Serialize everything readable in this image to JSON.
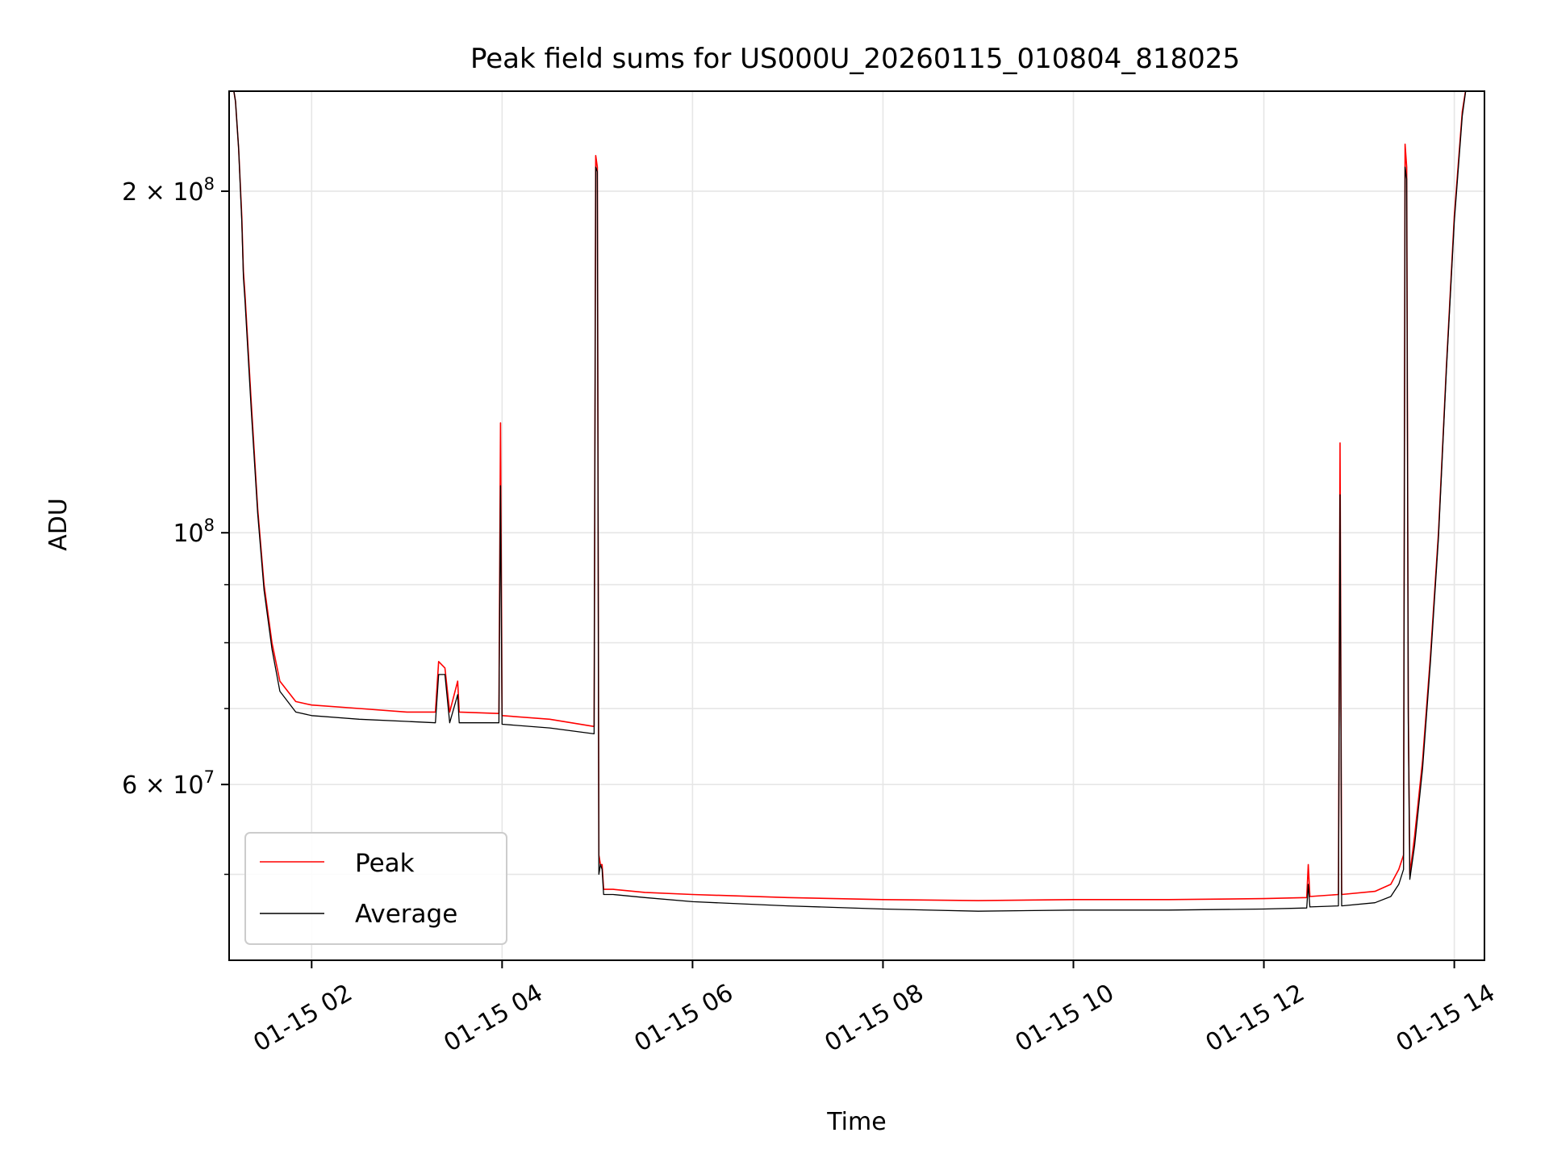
{
  "chart_data": {
    "type": "line",
    "title": "Peak field sums for US000U_20260115_010804_818025",
    "xlabel": "Time",
    "ylabel": "ADU",
    "yscale": "log",
    "grid": true,
    "legend_position": "lower-left",
    "xlim": [
      "2026-01-15 01:08",
      "2026-01-15 14:19"
    ],
    "ylim": [
      42000000,
      245000000
    ],
    "x_ticks": [
      {
        "value": "2026-01-15 02:00",
        "label": "01-15 02"
      },
      {
        "value": "2026-01-15 04:00",
        "label": "01-15 04"
      },
      {
        "value": "2026-01-15 06:00",
        "label": "01-15 06"
      },
      {
        "value": "2026-01-15 08:00",
        "label": "01-15 08"
      },
      {
        "value": "2026-01-15 10:00",
        "label": "01-15 10"
      },
      {
        "value": "2026-01-15 12:00",
        "label": "01-15 12"
      },
      {
        "value": "2026-01-15 14:00",
        "label": "01-15 14"
      }
    ],
    "y_ticks_major": [
      {
        "value": 100000000,
        "label": "10",
        "exp": "8"
      },
      {
        "value": 200000000,
        "label": "2 × 10",
        "exp": "8"
      },
      {
        "value": 60000000,
        "label": "6 × 10",
        "exp": "7"
      }
    ],
    "y_ticks_minor": [
      50000000,
      70000000,
      80000000,
      90000000
    ],
    "series": [
      {
        "name": "Peak",
        "color": "#ff0000",
        "points": [
          [
            "2026-01-15 01:10",
            250000000
          ],
          [
            "2026-01-15 01:12",
            240000000
          ],
          [
            "2026-01-15 01:14",
            218000000
          ],
          [
            "2026-01-15 01:16",
            190000000
          ],
          [
            "2026-01-15 01:17",
            170000000
          ],
          [
            "2026-01-15 01:18",
            162000000
          ],
          [
            "2026-01-15 01:22",
            130000000
          ],
          [
            "2026-01-15 01:26",
            105000000
          ],
          [
            "2026-01-15 01:30",
            90000000
          ],
          [
            "2026-01-15 01:35",
            80000000
          ],
          [
            "2026-01-15 01:40",
            74000000
          ],
          [
            "2026-01-15 01:50",
            71000000
          ],
          [
            "2026-01-15 02:00",
            70500000
          ],
          [
            "2026-01-15 02:30",
            70000000
          ],
          [
            "2026-01-15 03:00",
            69500000
          ],
          [
            "2026-01-15 03:18",
            69500000
          ],
          [
            "2026-01-15 03:20",
            77000000
          ],
          [
            "2026-01-15 03:24",
            76000000
          ],
          [
            "2026-01-15 03:27",
            69500000
          ],
          [
            "2026-01-15 03:32",
            74000000
          ],
          [
            "2026-01-15 03:33",
            69500000
          ],
          [
            "2026-01-15 03:58",
            69300000
          ],
          [
            "2026-01-15 03:59",
            125000000
          ],
          [
            "2026-01-15 04:00",
            69000000
          ],
          [
            "2026-01-15 04:30",
            68500000
          ],
          [
            "2026-01-15 04:58",
            67500000
          ],
          [
            "2026-01-15 04:59",
            215000000
          ],
          [
            "2026-01-15 05:00",
            210000000
          ],
          [
            "2026-01-15 05:01",
            52000000
          ],
          [
            "2026-01-15 05:02",
            51000000
          ],
          [
            "2026-01-15 05:03",
            51000000
          ],
          [
            "2026-01-15 05:04",
            48500000
          ],
          [
            "2026-01-15 05:10",
            48500000
          ],
          [
            "2026-01-15 05:30",
            48200000
          ],
          [
            "2026-01-15 06:00",
            48000000
          ],
          [
            "2026-01-15 07:00",
            47700000
          ],
          [
            "2026-01-15 08:00",
            47500000
          ],
          [
            "2026-01-15 09:00",
            47400000
          ],
          [
            "2026-01-15 10:00",
            47500000
          ],
          [
            "2026-01-15 11:00",
            47500000
          ],
          [
            "2026-01-15 12:00",
            47600000
          ],
          [
            "2026-01-15 12:27",
            47700000
          ],
          [
            "2026-01-15 12:28",
            51000000
          ],
          [
            "2026-01-15 12:29",
            47800000
          ],
          [
            "2026-01-15 12:47",
            48000000
          ],
          [
            "2026-01-15 12:48",
            120000000
          ],
          [
            "2026-01-15 12:49",
            48000000
          ],
          [
            "2026-01-15 13:10",
            48300000
          ],
          [
            "2026-01-15 13:20",
            49000000
          ],
          [
            "2026-01-15 13:25",
            50500000
          ],
          [
            "2026-01-15 13:28",
            52000000
          ],
          [
            "2026-01-15 13:29",
            220000000
          ],
          [
            "2026-01-15 13:30",
            210000000
          ],
          [
            "2026-01-15 13:31",
            70000000
          ],
          [
            "2026-01-15 13:32",
            50000000
          ],
          [
            "2026-01-15 13:35",
            54000000
          ],
          [
            "2026-01-15 13:40",
            63000000
          ],
          [
            "2026-01-15 13:45",
            78000000
          ],
          [
            "2026-01-15 13:50",
            100000000
          ],
          [
            "2026-01-15 13:55",
            140000000
          ],
          [
            "2026-01-15 14:00",
            190000000
          ],
          [
            "2026-01-15 14:05",
            235000000
          ],
          [
            "2026-01-15 14:08",
            250000000
          ]
        ]
      },
      {
        "name": "Average",
        "color": "#000000",
        "points": [
          [
            "2026-01-15 01:10",
            250000000
          ],
          [
            "2026-01-15 01:12",
            240000000
          ],
          [
            "2026-01-15 01:14",
            218000000
          ],
          [
            "2026-01-15 01:16",
            188000000
          ],
          [
            "2026-01-15 01:17",
            168000000
          ],
          [
            "2026-01-15 01:18",
            160000000
          ],
          [
            "2026-01-15 01:22",
            128000000
          ],
          [
            "2026-01-15 01:26",
            104000000
          ],
          [
            "2026-01-15 01:30",
            89000000
          ],
          [
            "2026-01-15 01:35",
            79000000
          ],
          [
            "2026-01-15 01:40",
            72500000
          ],
          [
            "2026-01-15 01:50",
            69500000
          ],
          [
            "2026-01-15 02:00",
            69000000
          ],
          [
            "2026-01-15 02:30",
            68500000
          ],
          [
            "2026-01-15 03:00",
            68200000
          ],
          [
            "2026-01-15 03:18",
            68000000
          ],
          [
            "2026-01-15 03:20",
            75000000
          ],
          [
            "2026-01-15 03:24",
            75000000
          ],
          [
            "2026-01-15 03:27",
            68000000
          ],
          [
            "2026-01-15 03:32",
            72000000
          ],
          [
            "2026-01-15 03:33",
            68000000
          ],
          [
            "2026-01-15 03:58",
            68000000
          ],
          [
            "2026-01-15 03:59",
            110000000
          ],
          [
            "2026-01-15 04:00",
            67800000
          ],
          [
            "2026-01-15 04:30",
            67300000
          ],
          [
            "2026-01-15 04:58",
            66500000
          ],
          [
            "2026-01-15 04:59",
            210000000
          ],
          [
            "2026-01-15 05:00",
            208000000
          ],
          [
            "2026-01-15 05:01",
            50000000
          ],
          [
            "2026-01-15 05:02",
            51000000
          ],
          [
            "2026-01-15 05:03",
            50500000
          ],
          [
            "2026-01-15 05:04",
            48000000
          ],
          [
            "2026-01-15 05:10",
            48000000
          ],
          [
            "2026-01-15 05:30",
            47700000
          ],
          [
            "2026-01-15 06:00",
            47300000
          ],
          [
            "2026-01-15 07:00",
            46900000
          ],
          [
            "2026-01-15 08:00",
            46600000
          ],
          [
            "2026-01-15 09:00",
            46400000
          ],
          [
            "2026-01-15 10:00",
            46500000
          ],
          [
            "2026-01-15 11:00",
            46500000
          ],
          [
            "2026-01-15 12:00",
            46600000
          ],
          [
            "2026-01-15 12:27",
            46700000
          ],
          [
            "2026-01-15 12:28",
            49000000
          ],
          [
            "2026-01-15 12:29",
            46800000
          ],
          [
            "2026-01-15 12:47",
            46900000
          ],
          [
            "2026-01-15 12:48",
            108000000
          ],
          [
            "2026-01-15 12:49",
            46900000
          ],
          [
            "2026-01-15 13:10",
            47200000
          ],
          [
            "2026-01-15 13:20",
            47800000
          ],
          [
            "2026-01-15 13:25",
            49000000
          ],
          [
            "2026-01-15 13:28",
            50500000
          ],
          [
            "2026-01-15 13:29",
            210000000
          ],
          [
            "2026-01-15 13:30",
            205000000
          ],
          [
            "2026-01-15 13:31",
            68000000
          ],
          [
            "2026-01-15 13:32",
            49500000
          ],
          [
            "2026-01-15 13:35",
            53000000
          ],
          [
            "2026-01-15 13:40",
            62000000
          ],
          [
            "2026-01-15 13:45",
            77000000
          ],
          [
            "2026-01-15 13:50",
            99000000
          ],
          [
            "2026-01-15 13:55",
            139000000
          ],
          [
            "2026-01-15 14:00",
            188000000
          ],
          [
            "2026-01-15 14:05",
            233000000
          ],
          [
            "2026-01-15 14:08",
            250000000
          ]
        ]
      }
    ]
  }
}
